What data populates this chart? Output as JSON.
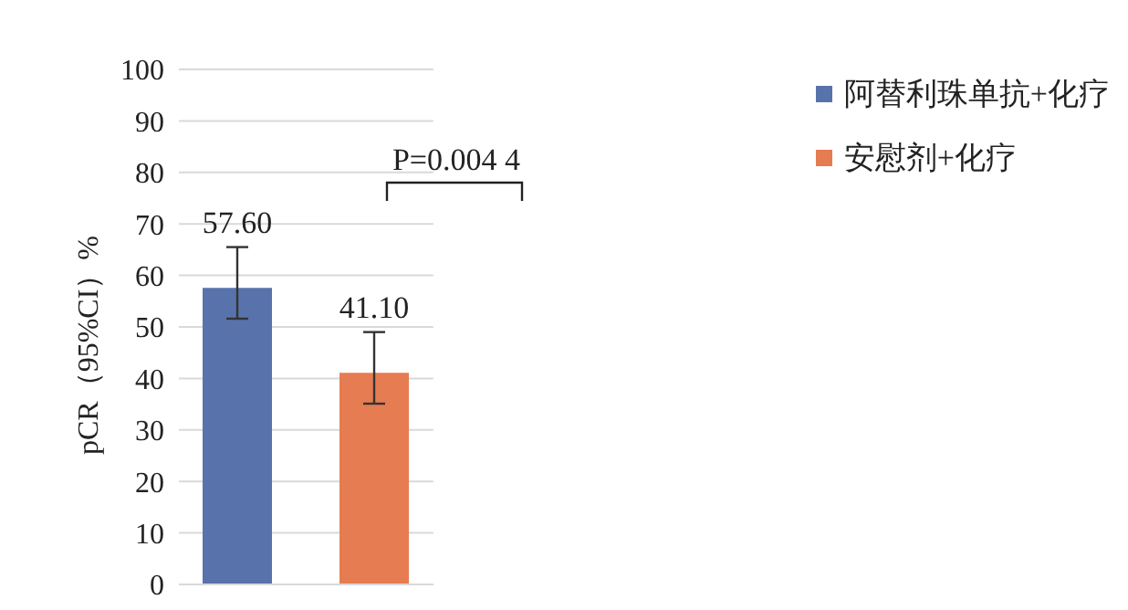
{
  "chart_data": {
    "type": "bar",
    "categories": [
      null
    ],
    "ylabel": "pCR（95%CI）%",
    "ylim": [
      0,
      100
    ],
    "yticks": [
      0,
      10,
      20,
      30,
      40,
      50,
      60,
      70,
      80,
      90,
      100
    ],
    "grid": "y",
    "legend": "right",
    "annotations": [
      "P=0.004 4"
    ],
    "series": [
      {
        "name": "阿替利珠单抗+化疗",
        "color": "#5873ab",
        "values": [
          57.6
        ],
        "errors": [
          [
            51.6,
            65.5
          ]
        ],
        "value_labels": [
          "57.60"
        ]
      },
      {
        "name": "安慰剂+化疗",
        "color": "#e67c52",
        "values": [
          41.1
        ],
        "errors": [
          [
            35.1,
            49.0
          ]
        ],
        "value_labels": [
          "41.10"
        ]
      }
    ]
  }
}
